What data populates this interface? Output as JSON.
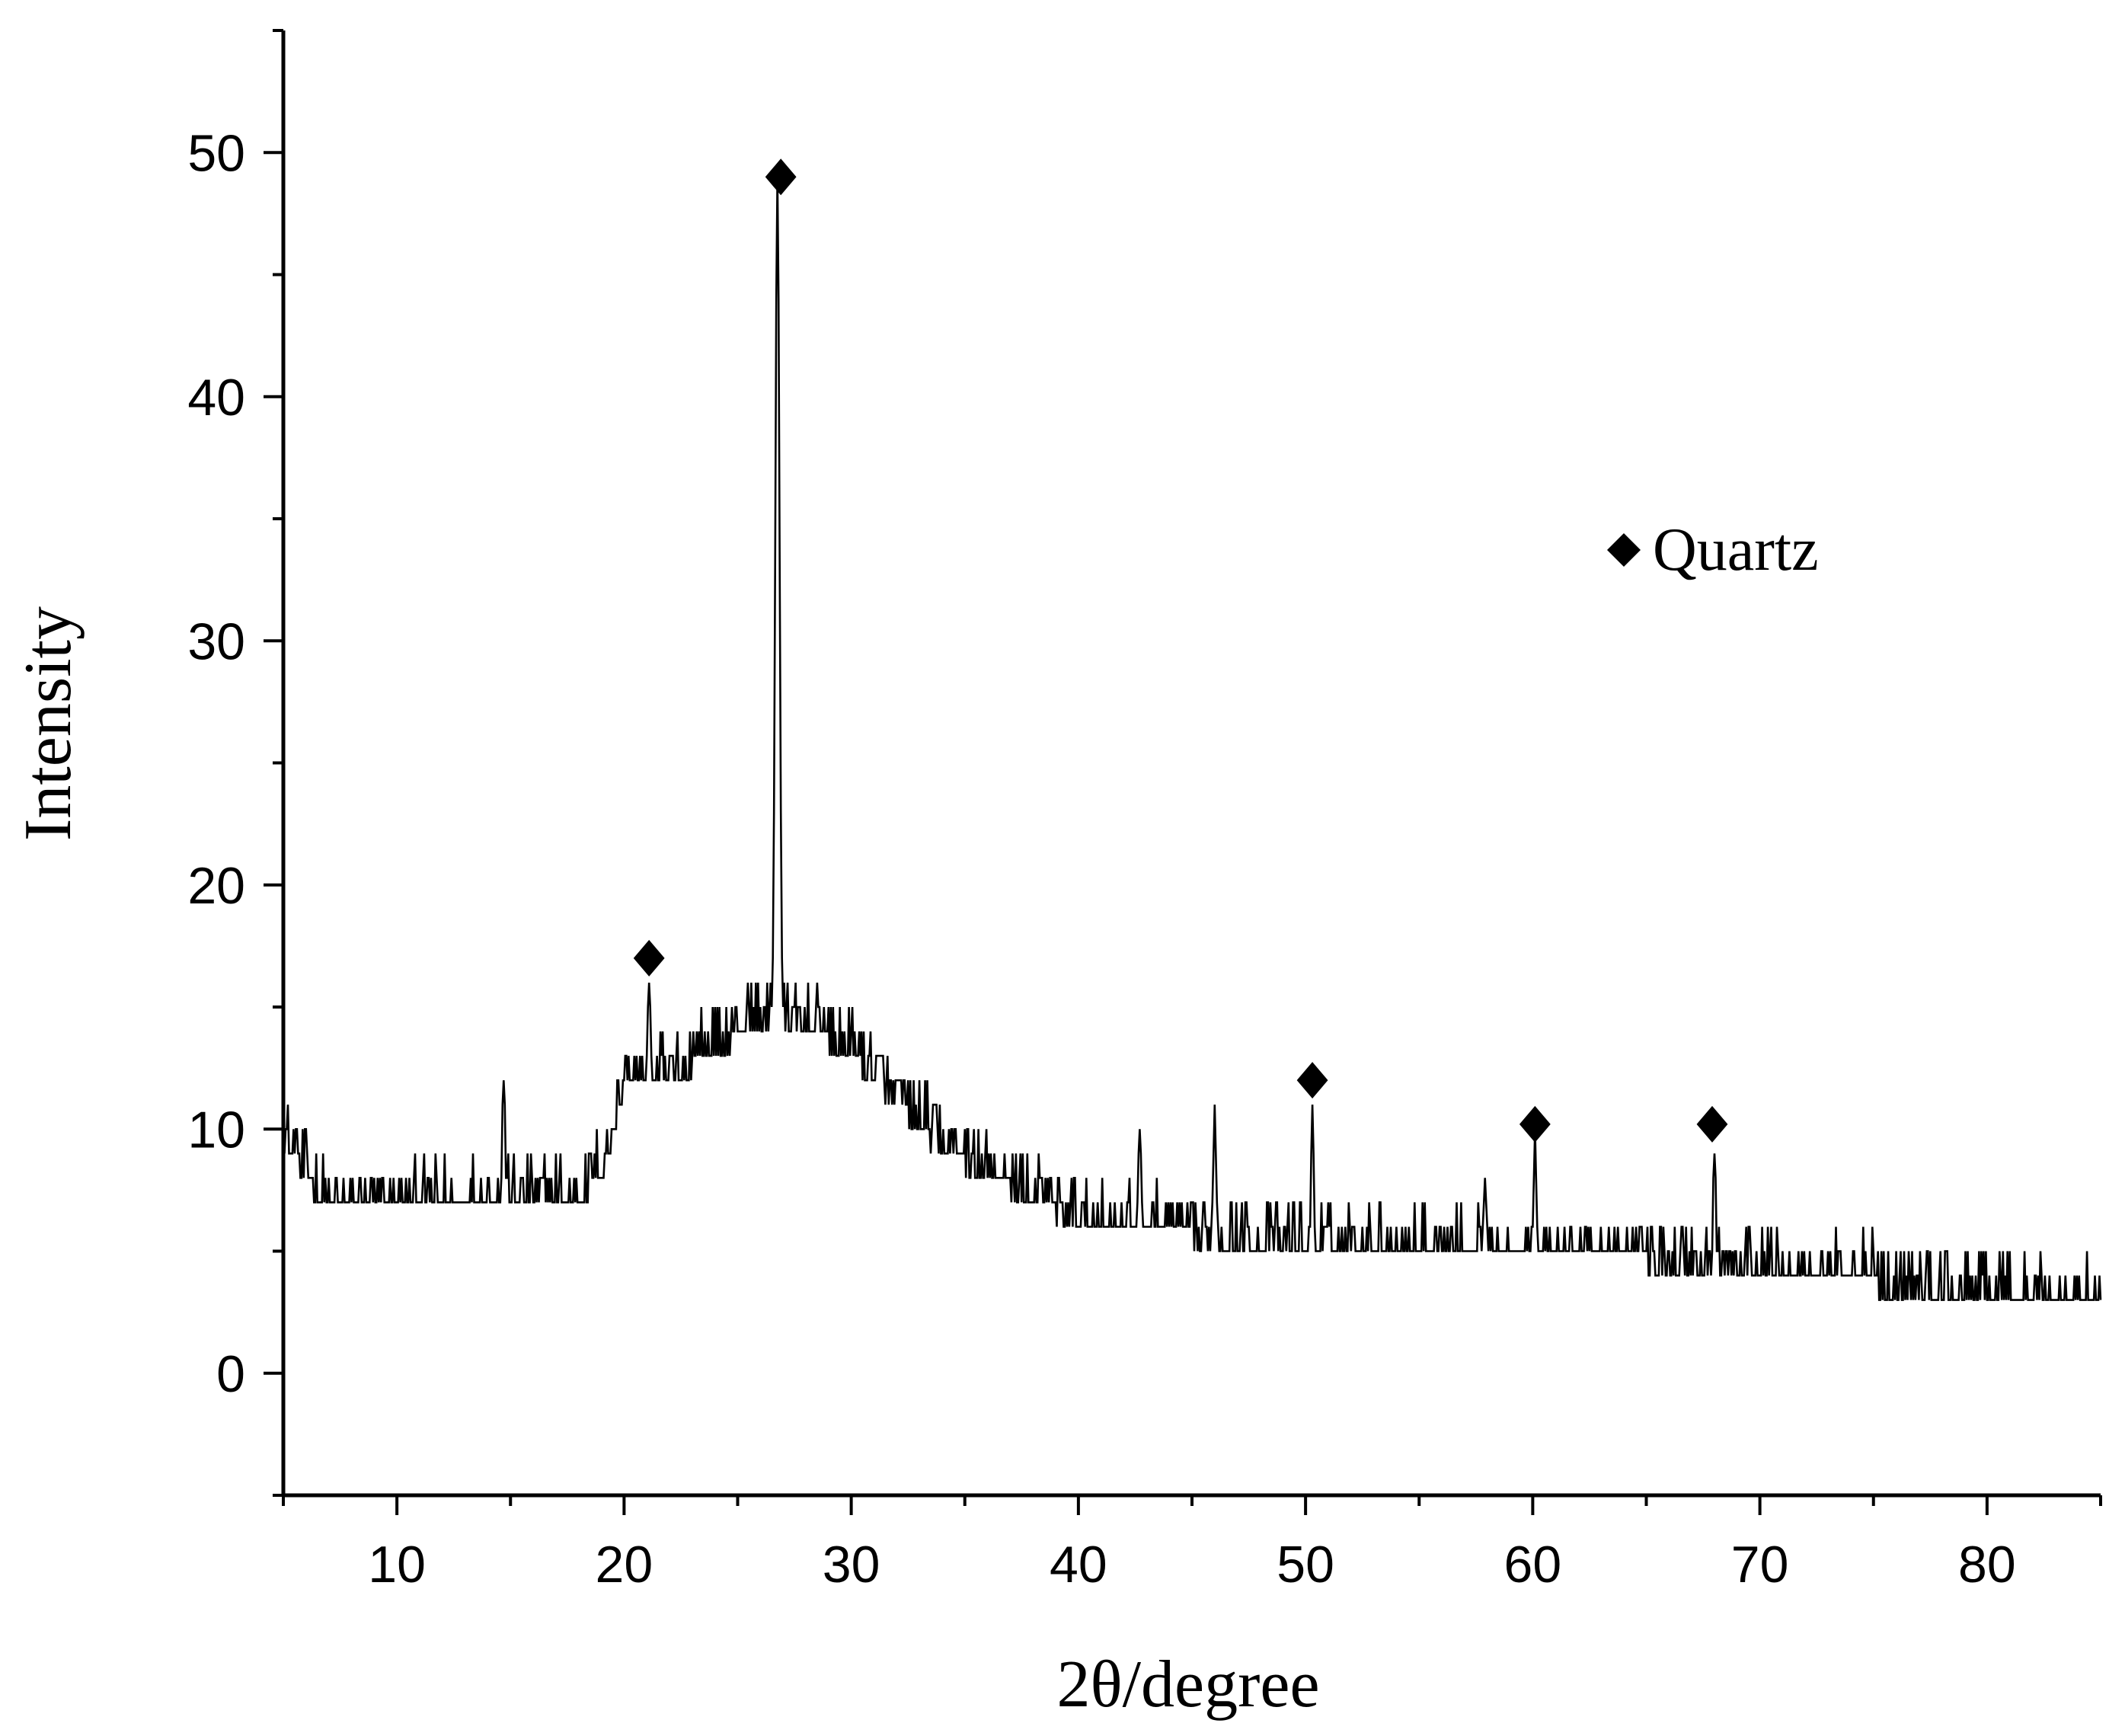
{
  "chart_data": {
    "type": "line",
    "title": "",
    "xlabel": "2θ/degree",
    "ylabel": "Intensity",
    "xlim": [
      5,
      85
    ],
    "ylim": [
      -5,
      55
    ],
    "xticks": [
      10,
      20,
      30,
      40,
      50,
      60,
      70,
      80
    ],
    "yticks": [
      0,
      10,
      20,
      30,
      40,
      50
    ],
    "x_tick_labels": [
      "10",
      "20",
      "30",
      "40",
      "50",
      "60",
      "70",
      "80"
    ],
    "y_tick_labels": [
      "0",
      "10",
      "20",
      "30",
      "40",
      "50"
    ],
    "grid": false,
    "legend": {
      "placement": "top-right",
      "entries": [
        {
          "symbol": "diamond",
          "label": "Quartz"
        }
      ]
    },
    "series": [
      {
        "color": "#000000",
        "step": 0.05,
        "noise_amplitude": 2,
        "baseline": [
          [
            5,
            9.5
          ],
          [
            6,
            8
          ],
          [
            7,
            6.5
          ],
          [
            10,
            6.5
          ],
          [
            14,
            7
          ],
          [
            18,
            7
          ],
          [
            19,
            8
          ],
          [
            20,
            11.5
          ],
          [
            22,
            12
          ],
          [
            24,
            13
          ],
          [
            26,
            14.5
          ],
          [
            28,
            14
          ],
          [
            30,
            13
          ],
          [
            32,
            11
          ],
          [
            34,
            9
          ],
          [
            36,
            8
          ],
          [
            38,
            7
          ],
          [
            40,
            6
          ],
          [
            45,
            5.5
          ],
          [
            50,
            5
          ],
          [
            55,
            5
          ],
          [
            60,
            4.5
          ],
          [
            65,
            4.5
          ],
          [
            70,
            4
          ],
          [
            75,
            3.5
          ],
          [
            80,
            3
          ],
          [
            85,
            2.5
          ]
        ],
        "peaks": [
          [
            21.1,
            16
          ],
          [
            26.75,
            49
          ],
          [
            50.3,
            11
          ],
          [
            60.1,
            10
          ],
          [
            68.0,
            9
          ],
          [
            14.7,
            12
          ],
          [
            46.0,
            11
          ],
          [
            57.9,
            8
          ],
          [
            42.7,
            10
          ]
        ]
      }
    ],
    "markers": [
      {
        "symbol": "diamond",
        "label": "Quartz",
        "x": 21.1,
        "y": 17
      },
      {
        "symbol": "diamond",
        "label": "Quartz",
        "x": 26.9,
        "y": 49
      },
      {
        "symbol": "diamond",
        "label": "Quartz",
        "x": 50.3,
        "y": 12
      },
      {
        "symbol": "diamond",
        "label": "Quartz",
        "x": 60.1,
        "y": 10.2
      },
      {
        "symbol": "diamond",
        "label": "Quartz",
        "x": 67.9,
        "y": 10.2
      }
    ]
  }
}
